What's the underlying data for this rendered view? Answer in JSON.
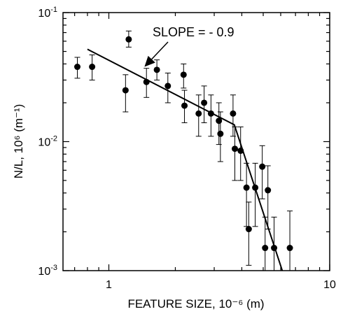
{
  "chart_data": {
    "type": "scatter",
    "xlabel": "FEATURE SIZE, 10⁻⁶ (m)",
    "ylabel": "N/L, 10⁶ (m⁻¹)",
    "xscale": "log",
    "yscale": "log",
    "xlim": [
      0.62,
      10
    ],
    "ylim": [
      0.001,
      0.1
    ],
    "x_ticks": [
      {
        "value": 1,
        "label": "1"
      },
      {
        "value": 10,
        "label": "10"
      }
    ],
    "y_ticks": [
      {
        "value": 0.001,
        "base": "10",
        "exp": "-3"
      },
      {
        "value": 0.01,
        "base": "10",
        "exp": "-2"
      },
      {
        "value": 0.1,
        "base": "10",
        "exp": "-1"
      }
    ],
    "annotation": {
      "text": "SLOPE = - 0.9",
      "arrow_target": {
        "x": 1.45,
        "y": 0.038
      }
    },
    "fit_line": [
      {
        "x": 0.8,
        "y": 0.052
      },
      {
        "x": 3.7,
        "y": 0.0135
      },
      {
        "x": 6.1,
        "y": 0.001
      }
    ],
    "points": [
      {
        "x": 0.72,
        "y": 0.038,
        "ylow": 0.031,
        "yhigh": 0.045
      },
      {
        "x": 0.84,
        "y": 0.038,
        "ylow": 0.03,
        "yhigh": 0.047
      },
      {
        "x": 1.19,
        "y": 0.025,
        "ylow": 0.017,
        "yhigh": 0.033
      },
      {
        "x": 1.23,
        "y": 0.062,
        "ylow": 0.054,
        "yhigh": 0.072
      },
      {
        "x": 1.48,
        "y": 0.029,
        "ylow": 0.022,
        "yhigh": 0.037
      },
      {
        "x": 1.65,
        "y": 0.036,
        "ylow": 0.03,
        "yhigh": 0.043
      },
      {
        "x": 1.85,
        "y": 0.027,
        "ylow": 0.02,
        "yhigh": 0.034
      },
      {
        "x": 2.18,
        "y": 0.033,
        "ylow": 0.026,
        "yhigh": 0.04
      },
      {
        "x": 2.2,
        "y": 0.019,
        "ylow": 0.014,
        "yhigh": 0.025
      },
      {
        "x": 2.55,
        "y": 0.0165,
        "ylow": 0.011,
        "yhigh": 0.023
      },
      {
        "x": 2.7,
        "y": 0.02,
        "ylow": 0.014,
        "yhigh": 0.027
      },
      {
        "x": 2.9,
        "y": 0.0165,
        "ylow": 0.011,
        "yhigh": 0.023
      },
      {
        "x": 3.15,
        "y": 0.0145,
        "ylow": 0.0095,
        "yhigh": 0.02
      },
      {
        "x": 3.2,
        "y": 0.0115,
        "ylow": 0.007,
        "yhigh": 0.017
      },
      {
        "x": 3.65,
        "y": 0.0165,
        "ylow": 0.011,
        "yhigh": 0.023
      },
      {
        "x": 3.72,
        "y": 0.0088,
        "ylow": 0.005,
        "yhigh": 0.013
      },
      {
        "x": 3.95,
        "y": 0.0085,
        "ylow": 0.005,
        "yhigh": 0.013
      },
      {
        "x": 4.2,
        "y": 0.0044,
        "ylow": 0.0022,
        "yhigh": 0.0068
      },
      {
        "x": 4.3,
        "y": 0.0021,
        "ylow": 0.0011,
        "yhigh": 0.0034
      },
      {
        "x": 4.6,
        "y": 0.0044,
        "ylow": 0.0022,
        "yhigh": 0.0068
      },
      {
        "x": 4.95,
        "y": 0.0064,
        "ylow": 0.0036,
        "yhigh": 0.0093
      },
      {
        "x": 5.1,
        "y": 0.0015,
        "ylow": 0.001,
        "yhigh": 0.0026
      },
      {
        "x": 5.25,
        "y": 0.0042,
        "ylow": 0.0021,
        "yhigh": 0.0065
      },
      {
        "x": 5.6,
        "y": 0.0015,
        "ylow": 0.001,
        "yhigh": 0.0026
      },
      {
        "x": 6.6,
        "y": 0.0015,
        "ylow": 0.001,
        "yhigh": 0.0029
      }
    ]
  }
}
